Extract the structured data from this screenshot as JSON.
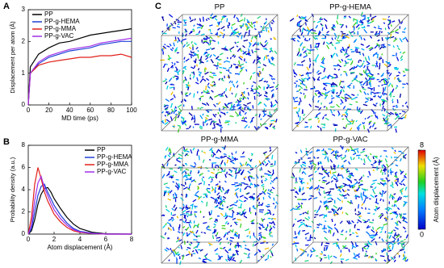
{
  "chart_data": [
    {
      "type": "line",
      "label": "A",
      "xlabel": "MD time (ps)",
      "ylabel": "Displacement per atom (Å)",
      "x": [
        0,
        2,
        10,
        20,
        30,
        40,
        50,
        60,
        70,
        80,
        90,
        100
      ],
      "series": [
        {
          "name": "PP",
          "color": "#000000",
          "values": [
            0,
            1.2,
            1.6,
            1.8,
            1.95,
            2.0,
            2.1,
            2.2,
            2.25,
            2.3,
            2.35,
            2.4
          ]
        },
        {
          "name": "PP-g-HEMA",
          "color": "#1f3fd6",
          "values": [
            0,
            1.0,
            1.3,
            1.5,
            1.6,
            1.7,
            1.75,
            1.8,
            1.9,
            1.95,
            2.0,
            2.0
          ]
        },
        {
          "name": "PP-g-MMA",
          "color": "#e0201a",
          "values": [
            0,
            1.0,
            1.25,
            1.35,
            1.4,
            1.45,
            1.5,
            1.5,
            1.55,
            1.55,
            1.6,
            1.5
          ]
        },
        {
          "name": "PP-g-VAC",
          "color": "#a030e8",
          "values": [
            0,
            1.0,
            1.35,
            1.55,
            1.65,
            1.75,
            1.8,
            1.85,
            1.95,
            2.0,
            2.05,
            2.1
          ]
        }
      ],
      "xlim": [
        0,
        100
      ],
      "ylim": [
        0,
        3
      ],
      "xticks": [
        0,
        20,
        40,
        60,
        80,
        100
      ],
      "yticks": [
        0,
        1,
        2,
        3
      ],
      "legend": "upper left"
    },
    {
      "type": "line",
      "label": "B",
      "xlabel": "Atom displacement (Å)",
      "ylabel": "Probability density (a.u.)",
      "x": [
        0,
        0.25,
        0.5,
        0.75,
        1,
        1.25,
        1.5,
        1.75,
        2,
        2.5,
        3,
        3.5,
        4,
        5,
        6,
        8
      ],
      "series": [
        {
          "name": "PP",
          "color": "#000000",
          "values": [
            0,
            0.3,
            1.3,
            2.7,
            3.6,
            4.1,
            4.2,
            3.8,
            3.2,
            2.3,
            1.5,
            0.9,
            0.5,
            0.15,
            0.03,
            0
          ]
        },
        {
          "name": "PP-g-HEMA",
          "color": "#1f3fd6",
          "values": [
            0,
            0.5,
            2.0,
            3.5,
            4.3,
            4.5,
            3.8,
            3.2,
            2.6,
            1.7,
            1.0,
            0.5,
            0.25,
            0.08,
            0,
            0
          ]
        },
        {
          "name": "PP-g-MMA",
          "color": "#e0201a",
          "values": [
            0,
            1.5,
            4.5,
            6.0,
            5.0,
            3.8,
            3.0,
            2.4,
            1.8,
            1.1,
            0.6,
            0.3,
            0.15,
            0.05,
            0,
            0
          ]
        },
        {
          "name": "PP-g-VAC",
          "color": "#a030e8",
          "values": [
            0,
            0.8,
            3.0,
            4.6,
            5.2,
            4.2,
            3.5,
            2.8,
            2.2,
            1.4,
            0.8,
            0.4,
            0.2,
            0.05,
            0,
            0
          ]
        }
      ],
      "xlim": [
        0,
        8
      ],
      "ylim": [
        0,
        8
      ],
      "xticks": [
        0,
        2,
        4,
        6,
        8
      ],
      "yticks": [
        0,
        2,
        4,
        6,
        8
      ],
      "legend": "upper right"
    }
  ],
  "panel_c": {
    "label": "C",
    "titles": [
      "PP",
      "PP-g-HEMA",
      "PP-g-MMA",
      "PP-g-VAC"
    ],
    "colorbar": {
      "title": "Atom displacement (Å)",
      "lim": [
        0,
        8
      ],
      "ticks": [
        0,
        8
      ]
    }
  }
}
